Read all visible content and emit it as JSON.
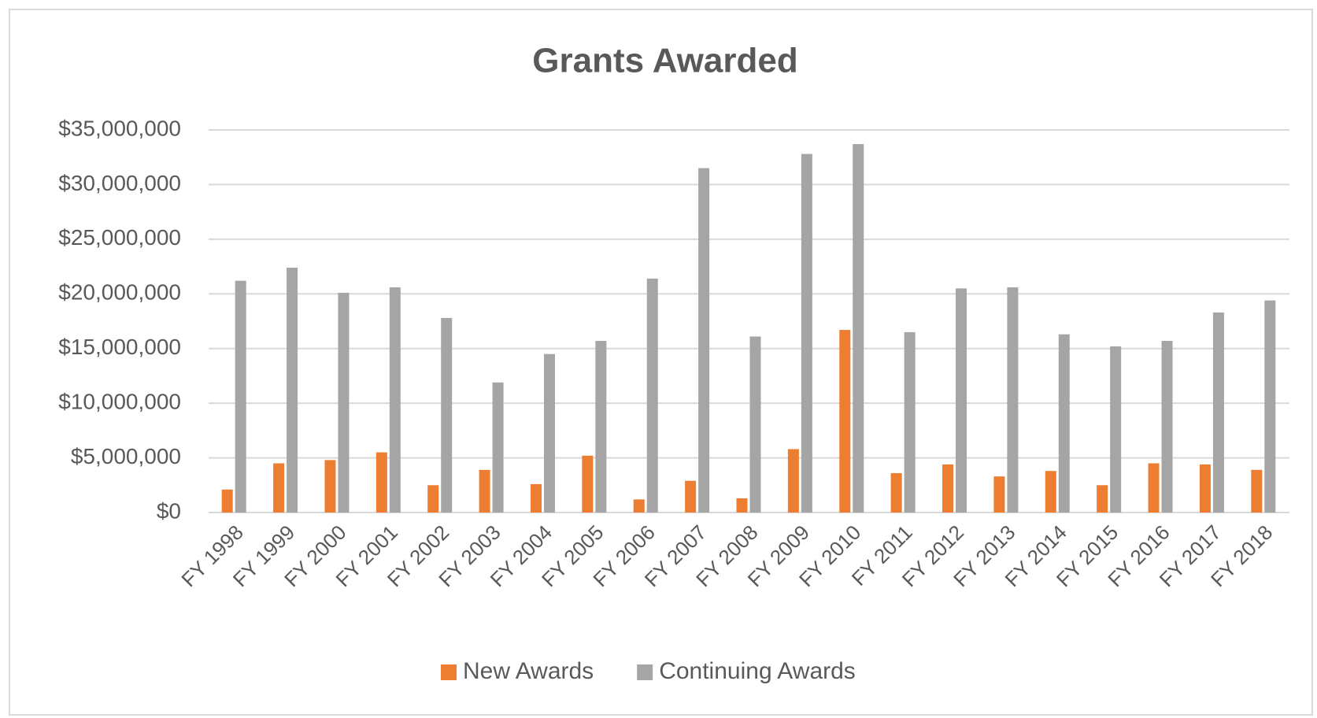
{
  "chart_data": {
    "type": "bar",
    "title": "Grants Awarded",
    "categories": [
      "FY 1998",
      "FY 1999",
      "FY 2000",
      "FY 2001",
      "FY 2002",
      "FY 2003",
      "FY 2004",
      "FY 2005",
      "FY 2006",
      "FY 2007",
      "FY 2008",
      "FY 2009",
      "FY 2010",
      "FY 2011",
      "FY 2012",
      "FY 2013",
      "FY 2014",
      "FY 2015",
      "FY 2016",
      "FY 2017",
      "FY 2018"
    ],
    "series": [
      {
        "name": "New Awards",
        "color": "#ed7d31",
        "values": [
          2100000,
          4500000,
          4800000,
          5500000,
          2500000,
          3900000,
          2600000,
          5200000,
          1200000,
          2900000,
          1300000,
          5800000,
          16700000,
          3600000,
          4400000,
          3300000,
          3800000,
          2500000,
          4500000,
          4400000,
          3900000
        ]
      },
      {
        "name": "Continuing Awards",
        "color": "#a5a5a5",
        "values": [
          21200000,
          22400000,
          20100000,
          20600000,
          17800000,
          11900000,
          14500000,
          15700000,
          21400000,
          31500000,
          16100000,
          32800000,
          33700000,
          16500000,
          20500000,
          20600000,
          16300000,
          15200000,
          15700000,
          18300000,
          19400000
        ]
      }
    ],
    "ylim": [
      0,
      35000000
    ],
    "yticks": [
      {
        "value": 0,
        "label": "$0"
      },
      {
        "value": 5000000,
        "label": "$5,000,000"
      },
      {
        "value": 10000000,
        "label": "$10,000,000"
      },
      {
        "value": 15000000,
        "label": "$15,000,000"
      },
      {
        "value": 20000000,
        "label": "$20,000,000"
      },
      {
        "value": 25000000,
        "label": "$25,000,000"
      },
      {
        "value": 30000000,
        "label": "$30,000,000"
      },
      {
        "value": 35000000,
        "label": "$35,000,000"
      }
    ],
    "grid": true,
    "legend": "bottom"
  }
}
